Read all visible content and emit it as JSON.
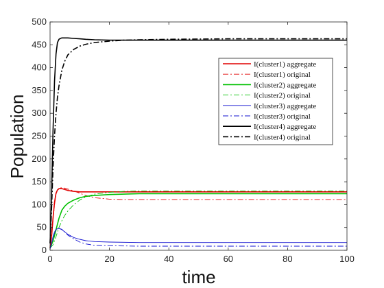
{
  "chart_data": {
    "type": "line",
    "title": "",
    "xlabel": "time",
    "ylabel": "Population",
    "xlim": [
      0,
      100
    ],
    "ylim": [
      0,
      500
    ],
    "xticks": [
      "0",
      "20",
      "40",
      "60",
      "80",
      "100"
    ],
    "yticks": [
      "0",
      "50",
      "100",
      "150",
      "200",
      "250",
      "300",
      "350",
      "400",
      "450",
      "500"
    ],
    "grid": false,
    "legend_position": "top-right",
    "series": [
      {
        "name": "I(cluster1) aggregate",
        "color": "#e00000",
        "dash": "solid",
        "width": "thick",
        "x": [
          0,
          0.5,
          1,
          1.5,
          2,
          2.5,
          3,
          4,
          5,
          6,
          8,
          10,
          12,
          15,
          20,
          30,
          40,
          60,
          80,
          100
        ],
        "y": [
          5,
          30,
          70,
          105,
          125,
          132,
          135,
          135,
          133,
          131,
          129,
          128,
          128,
          128,
          128,
          128,
          128,
          128,
          128,
          128
        ]
      },
      {
        "name": "I(cluster1) original",
        "color": "#e00000",
        "dash": "dashdot",
        "width": "thin",
        "x": [
          0,
          0.5,
          1,
          1.5,
          2,
          2.5,
          3,
          4,
          5,
          6,
          8,
          10,
          12,
          15,
          20,
          25,
          30,
          40,
          60,
          80,
          100
        ],
        "y": [
          5,
          28,
          65,
          100,
          122,
          132,
          136,
          137,
          136,
          134,
          130,
          125,
          120,
          115,
          112,
          111,
          111,
          111,
          111,
          111,
          111
        ]
      },
      {
        "name": "I(cluster2) aggregate",
        "color": "#00c000",
        "dash": "solid",
        "width": "thick",
        "x": [
          0,
          1,
          2,
          3,
          4,
          5,
          6,
          8,
          10,
          12,
          15,
          20,
          25,
          30,
          40,
          60,
          80,
          100
        ],
        "y": [
          5,
          20,
          45,
          70,
          88,
          97,
          103,
          110,
          115,
          118,
          120,
          122,
          123,
          124,
          124,
          124,
          124,
          124
        ]
      },
      {
        "name": "I(cluster2) original",
        "color": "#00c000",
        "dash": "dashdot",
        "width": "thin",
        "x": [
          0,
          1,
          2,
          3,
          4,
          5,
          6,
          8,
          10,
          12,
          15,
          20,
          25,
          30,
          40,
          60,
          80,
          100
        ],
        "y": [
          5,
          12,
          30,
          50,
          65,
          77,
          86,
          100,
          110,
          117,
          123,
          127,
          129,
          130,
          130,
          130,
          130,
          130
        ]
      },
      {
        "name": "I(cluster3) aggregate",
        "color": "#1010d0",
        "dash": "solid",
        "width": "thin",
        "x": [
          0,
          0.5,
          1,
          1.5,
          2,
          3,
          4,
          5,
          6,
          8,
          10,
          12,
          15,
          20,
          30,
          40,
          60,
          80,
          100
        ],
        "y": [
          3,
          15,
          30,
          40,
          46,
          48,
          45,
          40,
          35,
          28,
          24,
          21,
          19,
          18,
          17,
          17,
          17,
          17,
          17
        ]
      },
      {
        "name": "I(cluster3) original",
        "color": "#1010d0",
        "dash": "dashdot",
        "width": "thin",
        "x": [
          0,
          0.5,
          1,
          1.5,
          2,
          3,
          4,
          5,
          6,
          8,
          10,
          12,
          15,
          20,
          30,
          40,
          60,
          80,
          100
        ],
        "y": [
          3,
          14,
          28,
          38,
          45,
          48,
          46,
          40,
          33,
          25,
          18,
          14,
          11,
          10,
          9,
          9,
          9,
          9,
          9
        ]
      },
      {
        "name": "I(cluster4) aggregate",
        "color": "#000000",
        "dash": "solid",
        "width": "thick",
        "x": [
          0,
          0.5,
          1,
          1.5,
          2,
          2.5,
          3,
          3.5,
          4,
          5,
          6,
          8,
          10,
          12,
          15,
          20,
          30,
          40,
          60,
          80,
          100
        ],
        "y": [
          15,
          120,
          260,
          370,
          430,
          455,
          462,
          464,
          465,
          465,
          465,
          464,
          463,
          462,
          461,
          460,
          460,
          460,
          460,
          460,
          460
        ]
      },
      {
        "name": "I(cluster4) original",
        "color": "#000000",
        "dash": "dashdot",
        "width": "thick",
        "x": [
          0,
          0.5,
          1,
          1.5,
          2,
          2.5,
          3,
          4,
          5,
          6,
          8,
          10,
          12,
          15,
          20,
          25,
          30,
          40,
          60,
          80,
          100
        ],
        "y": [
          15,
          90,
          180,
          250,
          300,
          335,
          360,
          395,
          415,
          428,
          440,
          447,
          451,
          455,
          458,
          460,
          461,
          462,
          463,
          463,
          463
        ]
      }
    ]
  }
}
